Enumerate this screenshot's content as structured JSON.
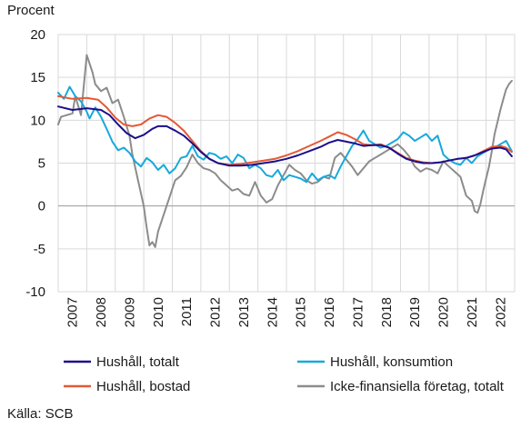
{
  "chart_data": {
    "type": "line",
    "ylabel": "Procent",
    "ylim": [
      -10,
      20
    ],
    "yticks": [
      -10,
      -5,
      0,
      5,
      10,
      15,
      20
    ],
    "xlim": [
      2006.5,
      2022.5
    ],
    "xticks": [
      "2007",
      "2008",
      "2009",
      "2010",
      "2011",
      "2012",
      "2013",
      "2014",
      "2015",
      "2016",
      "2017",
      "2018",
      "2019",
      "2020",
      "2021",
      "2022"
    ],
    "grid": true,
    "legend_position": "bottom",
    "source": "Källa: SCB",
    "series": [
      {
        "name": "Hushåll, totalt",
        "color": "#1a0f8c",
        "x": [
          2006.5,
          2007.0,
          2007.5,
          2008.0,
          2008.3,
          2008.6,
          2008.9,
          2009.2,
          2009.5,
          2009.8,
          2010.0,
          2010.3,
          2010.6,
          2010.9,
          2011.2,
          2011.5,
          2011.8,
          2012.1,
          2012.5,
          2012.9,
          2013.3,
          2013.7,
          2014.1,
          2014.5,
          2014.9,
          2015.3,
          2015.7,
          2016.0,
          2016.3,
          2016.6,
          2016.9,
          2017.2,
          2017.5,
          2017.8,
          2018.1,
          2018.4,
          2018.7,
          2019.0,
          2019.3,
          2019.6,
          2019.9,
          2020.2,
          2020.5,
          2020.8,
          2021.1,
          2021.4,
          2021.7,
          2022.0,
          2022.2,
          2022.4
        ],
        "y": [
          11.6,
          11.2,
          11.4,
          11.2,
          10.6,
          9.5,
          8.5,
          7.9,
          8.3,
          9.0,
          9.3,
          9.3,
          8.8,
          8.2,
          7.3,
          6.3,
          5.5,
          5.0,
          4.7,
          4.7,
          4.8,
          5.0,
          5.2,
          5.5,
          5.9,
          6.4,
          6.9,
          7.4,
          7.7,
          7.5,
          7.3,
          7.0,
          7.1,
          7.1,
          6.8,
          6.1,
          5.5,
          5.2,
          5.0,
          5.0,
          5.1,
          5.3,
          5.5,
          5.6,
          5.9,
          6.3,
          6.7,
          6.8,
          6.6,
          5.8
        ]
      },
      {
        "name": "Hushåll, konsumtion",
        "color": "#16a9dc",
        "x": [
          2006.5,
          2006.7,
          2006.9,
          2007.1,
          2007.3,
          2007.5,
          2007.6,
          2007.8,
          2008.0,
          2008.2,
          2008.4,
          2008.6,
          2008.8,
          2009.0,
          2009.2,
          2009.4,
          2009.6,
          2009.8,
          2010.0,
          2010.2,
          2010.4,
          2010.6,
          2010.8,
          2011.0,
          2011.2,
          2011.4,
          2011.6,
          2011.8,
          2012.0,
          2012.2,
          2012.4,
          2012.6,
          2012.8,
          2013.0,
          2013.2,
          2013.4,
          2013.6,
          2013.8,
          2014.0,
          2014.2,
          2014.4,
          2014.6,
          2014.8,
          2015.0,
          2015.2,
          2015.4,
          2015.6,
          2015.8,
          2016.0,
          2016.2,
          2016.4,
          2016.6,
          2016.8,
          2017.0,
          2017.2,
          2017.4,
          2017.6,
          2017.8,
          2018.0,
          2018.2,
          2018.4,
          2018.6,
          2018.8,
          2019.0,
          2019.2,
          2019.4,
          2019.6,
          2019.8,
          2020.0,
          2020.2,
          2020.4,
          2020.6,
          2020.8,
          2021.0,
          2021.2,
          2021.4,
          2021.6,
          2021.8,
          2022.0,
          2022.2,
          2022.4
        ],
        "y": [
          13.2,
          12.5,
          13.9,
          12.8,
          12.2,
          11.0,
          10.2,
          11.5,
          10.4,
          9.0,
          7.5,
          6.5,
          6.8,
          6.2,
          5.2,
          4.6,
          5.6,
          5.1,
          4.2,
          4.8,
          3.8,
          4.4,
          5.6,
          5.8,
          7.0,
          5.8,
          5.4,
          6.2,
          6.0,
          5.5,
          5.8,
          5.0,
          6.0,
          5.6,
          4.4,
          4.8,
          4.4,
          3.6,
          3.4,
          4.2,
          3.0,
          3.6,
          3.4,
          3.2,
          2.8,
          3.8,
          3.0,
          3.4,
          3.6,
          3.2,
          4.6,
          5.8,
          7.0,
          7.8,
          8.8,
          7.6,
          7.2,
          6.8,
          7.0,
          7.4,
          7.8,
          8.6,
          8.2,
          7.6,
          8.0,
          8.4,
          7.6,
          8.2,
          6.0,
          5.4,
          5.0,
          4.8,
          5.6,
          5.0,
          5.8,
          6.2,
          6.6,
          6.8,
          7.2,
          7.6,
          6.4
        ]
      },
      {
        "name": "Hushåll, bostad",
        "color": "#e35a35",
        "x": [
          2006.5,
          2007.0,
          2007.5,
          2007.9,
          2008.2,
          2008.5,
          2008.8,
          2009.1,
          2009.4,
          2009.7,
          2010.0,
          2010.3,
          2010.6,
          2010.9,
          2011.2,
          2011.5,
          2011.8,
          2012.1,
          2012.5,
          2012.9,
          2013.3,
          2013.7,
          2014.1,
          2014.5,
          2014.9,
          2015.3,
          2015.7,
          2016.0,
          2016.3,
          2016.6,
          2016.9,
          2017.2,
          2017.5,
          2017.8,
          2018.1,
          2018.4,
          2018.7,
          2019.0,
          2019.3,
          2019.6,
          2019.9,
          2020.2,
          2020.5,
          2020.8,
          2021.1,
          2021.4,
          2021.7,
          2022.0,
          2022.2,
          2022.4
        ],
        "y": [
          12.8,
          12.5,
          12.6,
          12.4,
          11.5,
          10.3,
          9.5,
          9.3,
          9.5,
          10.2,
          10.6,
          10.4,
          9.7,
          8.8,
          7.6,
          6.4,
          5.5,
          5.0,
          4.8,
          4.9,
          5.1,
          5.3,
          5.5,
          5.9,
          6.4,
          7.0,
          7.6,
          8.1,
          8.6,
          8.3,
          7.8,
          7.2,
          7.1,
          7.2,
          6.8,
          6.2,
          5.6,
          5.3,
          5.1,
          5.0,
          5.1,
          5.3,
          5.5,
          5.6,
          5.9,
          6.4,
          6.9,
          7.0,
          6.8,
          6.3
        ]
      },
      {
        "name": "Icke-finansiella företag, totalt",
        "color": "#8c8c8c",
        "x": [
          2006.5,
          2006.6,
          2006.8,
          2007.0,
          2007.1,
          2007.3,
          2007.5,
          2007.7,
          2007.8,
          2008.0,
          2008.2,
          2008.4,
          2008.6,
          2008.8,
          2009.0,
          2009.1,
          2009.3,
          2009.5,
          2009.6,
          2009.7,
          2009.8,
          2009.9,
          2010.0,
          2010.2,
          2010.4,
          2010.6,
          2010.8,
          2011.0,
          2011.2,
          2011.4,
          2011.6,
          2011.8,
          2012.0,
          2012.2,
          2012.4,
          2012.6,
          2012.8,
          2013.0,
          2013.2,
          2013.4,
          2013.6,
          2013.8,
          2014.0,
          2014.2,
          2014.4,
          2014.6,
          2014.8,
          2015.0,
          2015.2,
          2015.4,
          2015.6,
          2015.8,
          2016.0,
          2016.2,
          2016.4,
          2016.6,
          2016.8,
          2017.0,
          2017.2,
          2017.4,
          2017.6,
          2017.8,
          2018.0,
          2018.2,
          2018.4,
          2018.6,
          2018.8,
          2019.0,
          2019.2,
          2019.4,
          2019.6,
          2019.8,
          2020.0,
          2020.2,
          2020.4,
          2020.6,
          2020.8,
          2021.0,
          2021.1,
          2021.2,
          2021.3,
          2021.4,
          2021.5,
          2021.6,
          2021.7,
          2021.8,
          2021.9,
          2022.0,
          2022.1,
          2022.2,
          2022.3,
          2022.4
        ],
        "y": [
          9.5,
          10.4,
          10.6,
          10.8,
          12.8,
          10.6,
          17.6,
          15.6,
          14.2,
          13.4,
          13.8,
          12.0,
          12.4,
          10.4,
          8.2,
          6.0,
          3.0,
          0.0,
          -2.5,
          -4.6,
          -4.2,
          -4.8,
          -3.0,
          -1.0,
          1.0,
          3.0,
          3.5,
          4.5,
          6.0,
          5.0,
          4.4,
          4.2,
          3.8,
          3.0,
          2.4,
          1.8,
          2.0,
          1.4,
          1.2,
          2.8,
          1.2,
          0.4,
          0.8,
          2.4,
          3.6,
          4.8,
          4.2,
          3.8,
          3.0,
          2.6,
          2.8,
          3.4,
          3.2,
          5.6,
          6.2,
          5.4,
          4.6,
          3.6,
          4.4,
          5.2,
          5.6,
          6.0,
          6.4,
          6.8,
          7.2,
          6.6,
          5.8,
          4.6,
          4.0,
          4.4,
          4.2,
          3.8,
          5.2,
          4.6,
          4.0,
          3.4,
          1.2,
          0.6,
          -0.6,
          -0.8,
          0.2,
          1.8,
          3.2,
          4.6,
          6.4,
          8.4,
          9.8,
          11.2,
          12.4,
          13.6,
          14.2,
          14.6
        ]
      }
    ]
  }
}
